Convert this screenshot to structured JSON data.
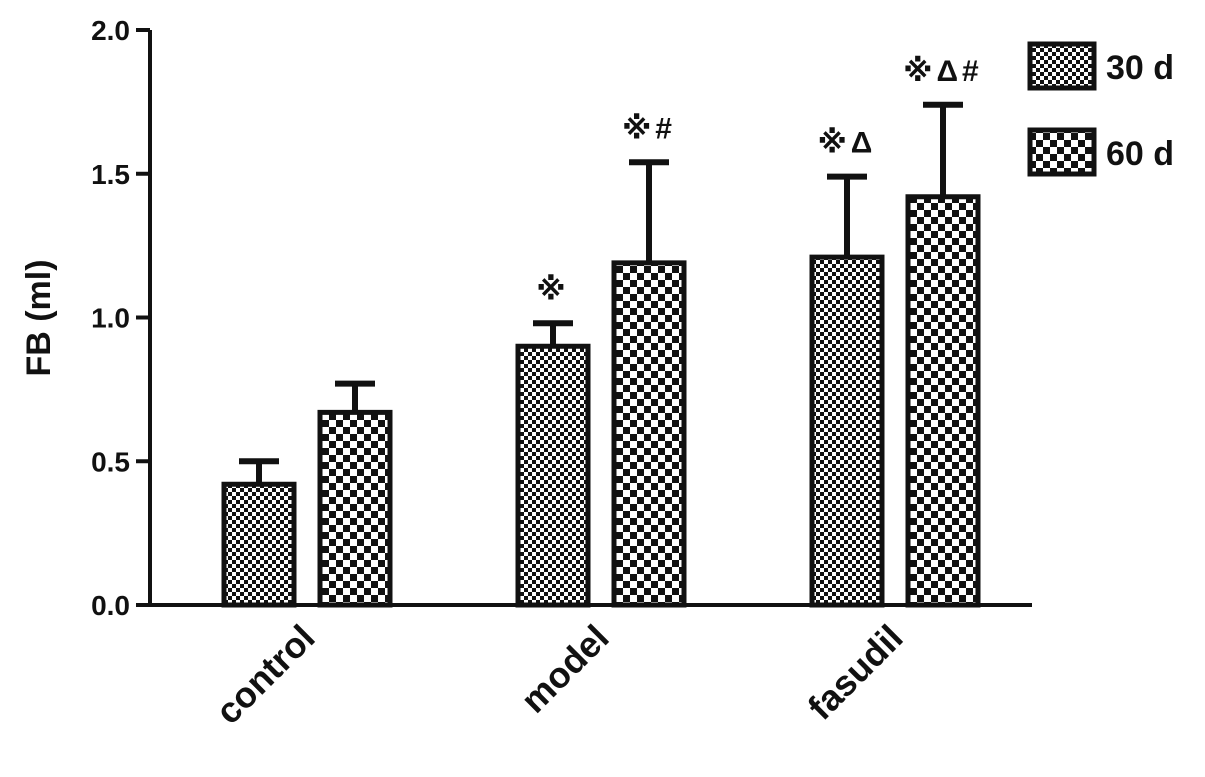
{
  "chart_data": {
    "type": "bar",
    "ylabel": "FB (ml)",
    "xlabel": "",
    "ylim": [
      0,
      2.0
    ],
    "yticks": [
      "0.0",
      "0.5",
      "1.0",
      "1.5",
      "2.0"
    ],
    "categories": [
      "control",
      "model",
      "fasudil"
    ],
    "series": [
      {
        "name": "30 d",
        "values": [
          0.42,
          0.9,
          1.21
        ],
        "errors": [
          0.08,
          0.08,
          0.28
        ],
        "annotations": [
          "",
          "※",
          "※Δ"
        ]
      },
      {
        "name": "60 d",
        "values": [
          0.67,
          1.19,
          1.42
        ],
        "errors": [
          0.1,
          0.35,
          0.32
        ],
        "annotations": [
          "",
          "※#",
          "※Δ#"
        ]
      }
    ],
    "legend": "top-right",
    "grid": false
  }
}
